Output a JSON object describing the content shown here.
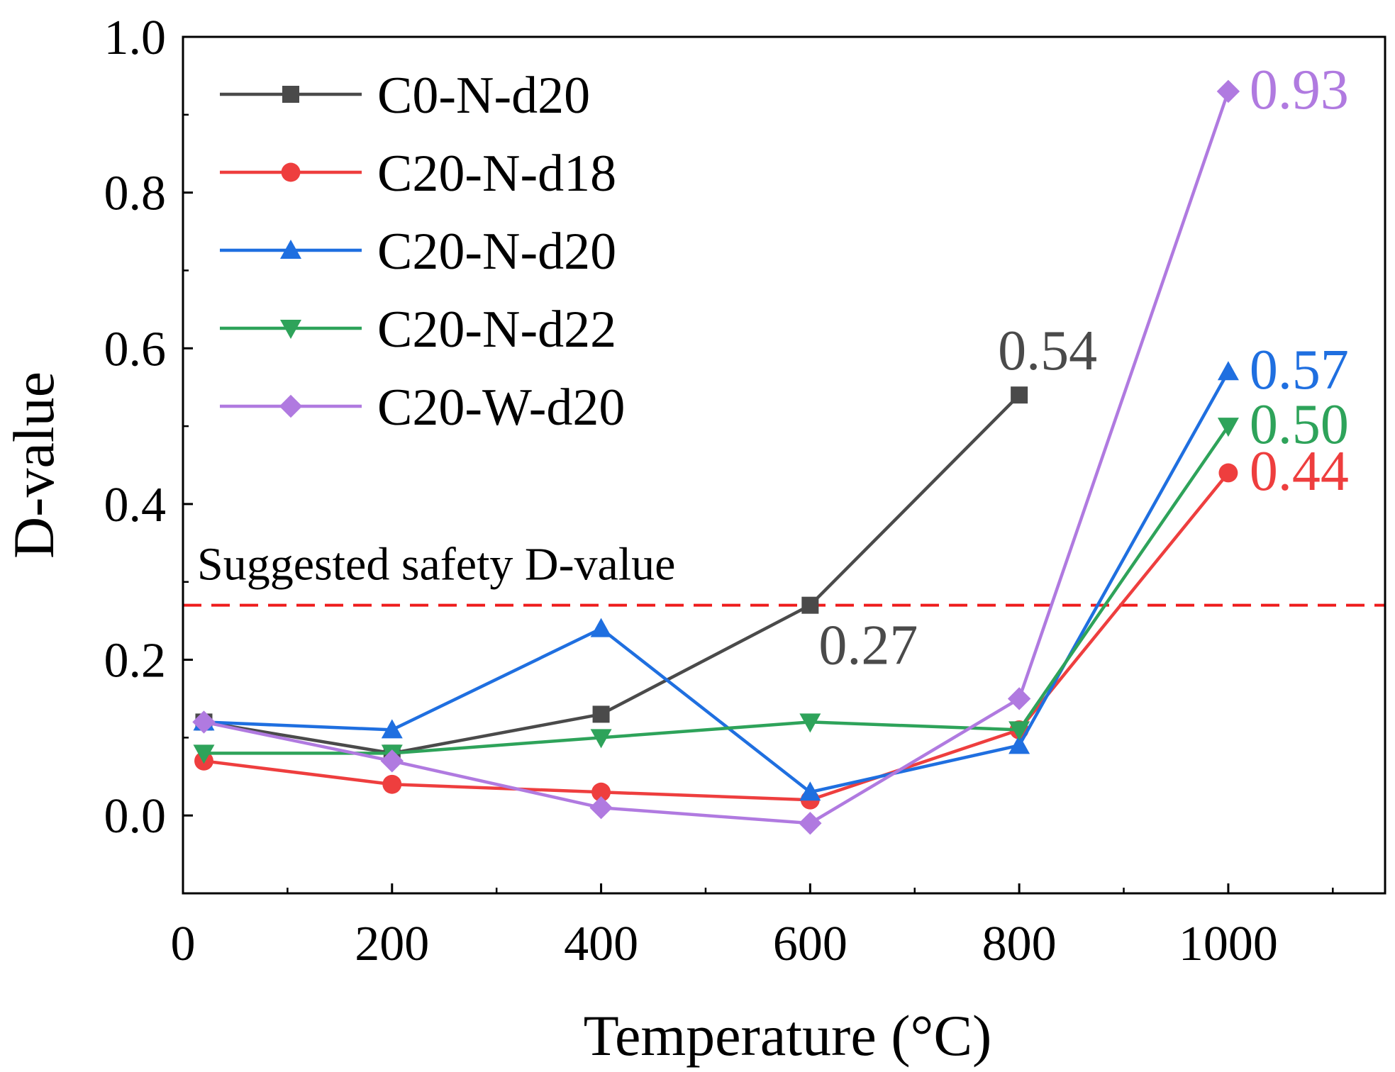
{
  "chart_data": {
    "type": "line",
    "xlabel": "Temperature (°C)",
    "ylabel": "D-value",
    "xlim": [
      0,
      1150
    ],
    "ylim": [
      -0.1,
      1.0
    ],
    "x_ticks": [
      0,
      200,
      400,
      600,
      800,
      1000
    ],
    "x_tick_labels": [
      "0",
      "200",
      "400",
      "600",
      "800",
      "1000"
    ],
    "y_ticks": [
      0.0,
      0.2,
      0.4,
      0.6,
      0.8,
      1.0
    ],
    "y_tick_labels": [
      "0.0",
      "0.2",
      "0.4",
      "0.6",
      "0.8",
      "1.0"
    ],
    "legend_position": "top-left",
    "threshold": {
      "value": 0.27,
      "label": "Suggested safety D-value",
      "color": "#ee1c1c"
    },
    "series": [
      {
        "name": "C0-N-d20",
        "color": "#4a4a4a",
        "marker": "square",
        "x": [
          20,
          200,
          400,
          600,
          800
        ],
        "values": [
          0.12,
          0.08,
          0.13,
          0.27,
          0.54
        ]
      },
      {
        "name": "C20-N-d18",
        "color": "#ee3e3e",
        "marker": "circle",
        "x": [
          20,
          200,
          400,
          600,
          800,
          1000
        ],
        "values": [
          0.07,
          0.04,
          0.03,
          0.02,
          0.11,
          0.44
        ]
      },
      {
        "name": "C20-N-d20",
        "color": "#1f6fe0",
        "marker": "triangle-up",
        "x": [
          20,
          200,
          400,
          600,
          800,
          1000
        ],
        "values": [
          0.12,
          0.11,
          0.24,
          0.03,
          0.09,
          0.57
        ]
      },
      {
        "name": "C20-N-d22",
        "color": "#2ea35a",
        "marker": "triangle-down",
        "x": [
          20,
          200,
          400,
          600,
          800,
          1000
        ],
        "values": [
          0.08,
          0.08,
          0.1,
          0.12,
          0.11,
          0.5
        ]
      },
      {
        "name": "C20-W-d20",
        "color": "#b07ae0",
        "marker": "diamond",
        "x": [
          20,
          200,
          400,
          600,
          800,
          1000
        ],
        "values": [
          0.12,
          0.07,
          0.01,
          -0.01,
          0.15,
          0.93
        ]
      }
    ],
    "annotations": [
      {
        "text": "0.54",
        "x": 800,
        "y": 0.54,
        "color": "#4a4a4a",
        "anchor": "above"
      },
      {
        "text": "0.27",
        "x": 600,
        "y": 0.27,
        "color": "#4a4a4a",
        "anchor": "below-right"
      },
      {
        "text": "0.93",
        "x": 1000,
        "y": 0.93,
        "color": "#b07ae0",
        "anchor": "right"
      },
      {
        "text": "0.57",
        "x": 1000,
        "y": 0.57,
        "color": "#1f6fe0",
        "anchor": "right"
      },
      {
        "text": "0.50",
        "x": 1000,
        "y": 0.5,
        "color": "#2ea35a",
        "anchor": "right"
      },
      {
        "text": "0.44",
        "x": 1000,
        "y": 0.44,
        "color": "#ee3e3e",
        "anchor": "right"
      }
    ]
  }
}
